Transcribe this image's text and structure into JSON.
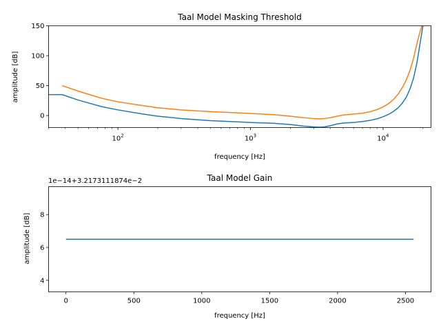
{
  "chart_data": [
    {
      "type": "line",
      "title": "Taal Model Masking Threshold",
      "xlabel": "frequency [Hz]",
      "ylabel": "amplitude [dB]",
      "xscale": "log",
      "xlim": [
        30,
        23000
      ],
      "ylim": [
        -20,
        150
      ],
      "xticks": [
        {
          "value": 100,
          "base": "10",
          "exp": "2"
        },
        {
          "value": 1000,
          "base": "10",
          "exp": "3"
        },
        {
          "value": 10000,
          "base": "10",
          "exp": "4"
        }
      ],
      "yticks": [
        0,
        50,
        100,
        150
      ],
      "grid": false,
      "colors": [
        "#1f77b4",
        "#ff7f0e"
      ],
      "series": [
        {
          "x": [
            30,
            38,
            50,
            75,
            100,
            150,
            200,
            300,
            500,
            800,
            1000,
            1500,
            2000,
            2500,
            3000,
            3300,
            3600,
            4000,
            4500,
            5000,
            6000,
            7000,
            8000,
            9000,
            10000,
            11000,
            12000,
            13000,
            14000,
            15000,
            16000,
            17000,
            18000,
            19000,
            20000
          ],
          "y": [
            35,
            35,
            26,
            15,
            9.5,
            3,
            -1,
            -5,
            -8.5,
            -10.5,
            -11.5,
            -13,
            -15,
            -17.5,
            -19,
            -19.5,
            -19,
            -17,
            -14,
            -12.5,
            -11.5,
            -10,
            -8,
            -5.5,
            -2,
            2,
            7,
            13,
            21,
            31,
            45,
            63,
            88,
            120,
            150
          ]
        },
        {
          "x": [
            38,
            50,
            75,
            100,
            150,
            200,
            300,
            500,
            800,
            1000,
            1500,
            2000,
            2500,
            3000,
            3300,
            3600,
            4000,
            4500,
            5000,
            6000,
            7000,
            8000,
            9000,
            10000,
            11000,
            12000,
            13000,
            14000,
            15000,
            16000,
            17000,
            18000,
            19000,
            20000
          ],
          "y": [
            50,
            41,
            29,
            23,
            17,
            13,
            9.5,
            6.5,
            4.5,
            3.5,
            1.5,
            -1,
            -3.5,
            -5,
            -5.5,
            -5,
            -3.5,
            -1,
            1,
            2.5,
            4,
            6.5,
            10,
            14.5,
            20,
            27,
            36,
            47,
            60,
            76,
            96,
            120,
            140,
            155
          ]
        }
      ]
    },
    {
      "type": "line",
      "title": "Taal Model Gain",
      "xlabel": "frequency [Hz]",
      "ylabel": "amplitude [dB]",
      "offset_text": "1e−14+3.2173111874e−2",
      "xlim": [
        -128,
        2688
      ],
      "ylim": [
        3.3,
        9.7
      ],
      "xticks": [
        0,
        500,
        1000,
        1500,
        2000,
        2500
      ],
      "yticks": [
        4,
        6,
        8
      ],
      "grid": false,
      "colors": [
        "#1f77b4"
      ],
      "series": [
        {
          "x": [
            0,
            2560
          ],
          "y": [
            6.5,
            6.5
          ]
        }
      ]
    }
  ]
}
